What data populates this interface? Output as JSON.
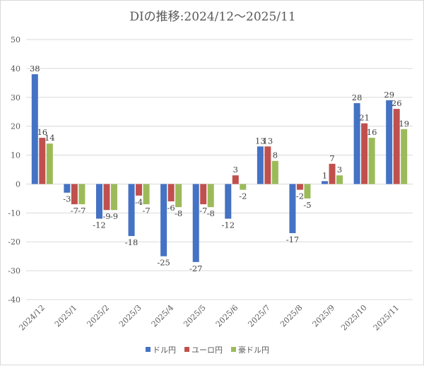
{
  "chart_data": {
    "type": "bar",
    "title": "DIの推移:2024/12～2025/11",
    "categories": [
      "2024/12",
      "2025/1",
      "2025/2",
      "2025/3",
      "2025/4",
      "2025/5",
      "2025/6",
      "2025/7",
      "2025/8",
      "2025/9",
      "2025/10",
      "2025/11"
    ],
    "series": [
      {
        "name": "ドル円",
        "color": "#4472c4",
        "values": [
          38,
          -3,
          -12,
          -18,
          -25,
          -27,
          -12,
          13,
          -17,
          1,
          28,
          29
        ]
      },
      {
        "name": "ユーロ円",
        "color": "#c0504d",
        "values": [
          16,
          -7,
          -9,
          -4,
          -6,
          -7,
          3,
          13,
          -2,
          7,
          21,
          26
        ]
      },
      {
        "name": "豪ドル円",
        "color": "#9bbb59",
        "values": [
          14,
          -7,
          -9,
          -7,
          -8,
          -8,
          -2,
          8,
          -5,
          3,
          16,
          19
        ]
      }
    ],
    "ylim": [
      -40,
      50
    ],
    "yticks": [
      -40,
      -30,
      -20,
      -10,
      0,
      10,
      20,
      30,
      40,
      50
    ],
    "grid": true,
    "legend": "bottom",
    "xlabel": "",
    "ylabel": ""
  }
}
